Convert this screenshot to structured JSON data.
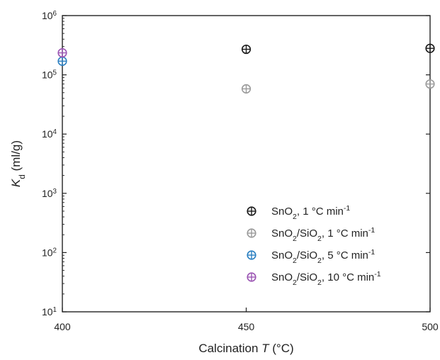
{
  "chart_data": {
    "type": "scatter",
    "x_axis": {
      "label_prefix": "Calcination ",
      "label_var": "T",
      "label_suffix": " (°C)",
      "range": [
        400,
        500
      ],
      "ticks": [
        400,
        450,
        500
      ]
    },
    "y_axis": {
      "label_var": "K",
      "label_sub": "d",
      "label_suffix": " (ml/g)",
      "scale": "log",
      "range": [
        10,
        1000000
      ],
      "ticks": [
        {
          "base": "10",
          "exp": "1"
        },
        {
          "base": "10",
          "exp": "2"
        },
        {
          "base": "10",
          "exp": "3"
        },
        {
          "base": "10",
          "exp": "4"
        },
        {
          "base": "10",
          "exp": "5"
        },
        {
          "base": "10",
          "exp": "6"
        }
      ]
    },
    "grid": false,
    "legend": "bottom-right",
    "series": [
      {
        "label_parts": [
          [
            "SnO",
            ""
          ],
          [
            "2",
            "sub"
          ],
          [
            ", 1 °C min",
            ""
          ],
          [
            "-1",
            "sup"
          ]
        ],
        "color": "#1a1a1a",
        "marker": "circle-plus",
        "points": [
          {
            "x": 450,
            "y": 270000
          },
          {
            "x": 500,
            "y": 280000
          }
        ]
      },
      {
        "label_parts": [
          [
            "SnO",
            ""
          ],
          [
            "2",
            "sub"
          ],
          [
            "/SiO",
            ""
          ],
          [
            "2",
            "sub"
          ],
          [
            ", 1 °C min",
            ""
          ],
          [
            "-1",
            "sup"
          ]
        ],
        "color": "#9a9a9a",
        "marker": "circle-plus",
        "points": [
          {
            "x": 450,
            "y": 58000
          },
          {
            "x": 500,
            "y": 70000
          }
        ]
      },
      {
        "label_parts": [
          [
            "SnO",
            ""
          ],
          [
            "2",
            "sub"
          ],
          [
            "/SiO",
            ""
          ],
          [
            "2",
            "sub"
          ],
          [
            ", 5 °C min",
            ""
          ],
          [
            "-1",
            "sup"
          ]
        ],
        "color": "#2a7fc1",
        "marker": "circle-plus",
        "points": [
          {
            "x": 400,
            "y": 170000
          }
        ]
      },
      {
        "label_parts": [
          [
            "SnO",
            ""
          ],
          [
            "2",
            "sub"
          ],
          [
            "/SiO",
            ""
          ],
          [
            "2",
            "sub"
          ],
          [
            ", 10 °C min",
            ""
          ],
          [
            "-1",
            "sup"
          ]
        ],
        "color": "#9b55b3",
        "marker": "circle-plus",
        "points": [
          {
            "x": 400,
            "y": 235000
          }
        ]
      }
    ]
  }
}
